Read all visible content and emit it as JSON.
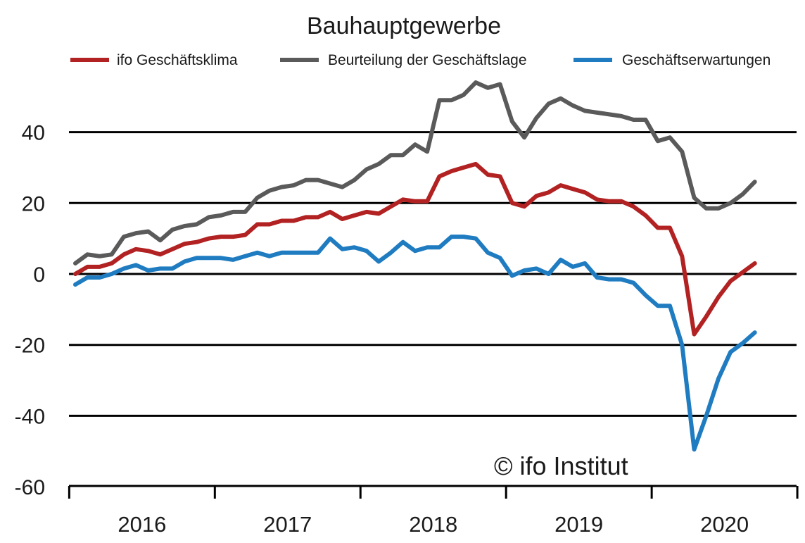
{
  "chart_data": {
    "type": "line",
    "title": "Bauhauptgewerbe",
    "xlabel": "",
    "ylabel": "",
    "ylim": [
      -60,
      55
    ],
    "yticks": [
      40,
      20,
      0,
      -20,
      -40,
      -60
    ],
    "year_labels": [
      "2016",
      "2017",
      "2018",
      "2019",
      "2020"
    ],
    "x_start": "2016-01",
    "grid": "horizontal",
    "legend_position": "top",
    "watermark": "© ifo Institut",
    "series": [
      {
        "name": "ifo Geschäftsklima",
        "color": "#b22222",
        "values": [
          0,
          2,
          2,
          3,
          5.5,
          7,
          6.5,
          5.5,
          7,
          8.5,
          9,
          10,
          10.5,
          10.5,
          11,
          14,
          14,
          15,
          15,
          16,
          16,
          17.5,
          15.5,
          16.5,
          17.5,
          17,
          19,
          21,
          20.5,
          20.5,
          27.5,
          29,
          30,
          31,
          28,
          27.5,
          20,
          19,
          22,
          23,
          25,
          24,
          23,
          21,
          20.5,
          20.5,
          19,
          16.5,
          13,
          13,
          5,
          -17,
          -12,
          -6.5,
          -2,
          0.5,
          3
        ]
      },
      {
        "name": "Beurteilung der Geschäftslage",
        "color": "#5a5a5a",
        "values": [
          3,
          5.5,
          5,
          5.5,
          10.5,
          11.5,
          12,
          9.5,
          12.5,
          13.5,
          14,
          16,
          16.5,
          17.5,
          17.5,
          21.5,
          23.5,
          24.5,
          25,
          26.5,
          26.5,
          25.5,
          24.5,
          26.5,
          29.5,
          31,
          33.5,
          33.5,
          36.5,
          34.5,
          49,
          49,
          50.5,
          54,
          52.5,
          53.5,
          43,
          38.5,
          44,
          48,
          49.5,
          47.5,
          46,
          45.5,
          45,
          44.5,
          43.5,
          43.5,
          37.5,
          38.5,
          34.5,
          21.5,
          18.5,
          18.5,
          20,
          22.5,
          26
        ]
      },
      {
        "name": "Geschäftserwartungen",
        "color": "#1f7cc1",
        "values": [
          -3,
          -1,
          -1,
          0,
          1.5,
          2.5,
          1,
          1.5,
          1.5,
          3.5,
          4.5,
          4.5,
          4.5,
          4,
          5,
          6,
          5,
          6,
          6,
          6,
          6,
          10,
          7,
          7.5,
          6.5,
          3.5,
          6,
          9,
          6.5,
          7.5,
          7.5,
          10.5,
          10.5,
          10,
          6,
          4.5,
          -0.5,
          1,
          1.5,
          0,
          4,
          2,
          3,
          -1,
          -1.5,
          -1.5,
          -2.5,
          -6,
          -9,
          -9,
          -20,
          -49.5,
          -40,
          -29.5,
          -22,
          -19.5,
          -16.5
        ]
      }
    ]
  }
}
